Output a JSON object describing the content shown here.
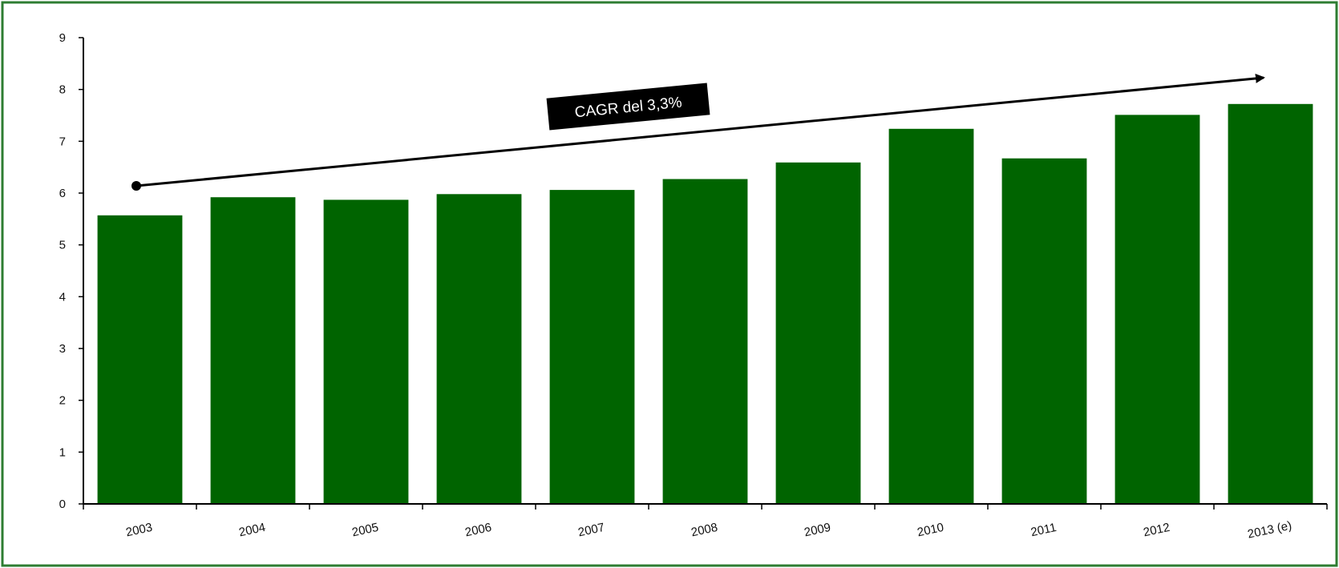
{
  "chart_data": {
    "type": "bar",
    "categories": [
      "2003",
      "2004",
      "2005",
      "2006",
      "2007",
      "2008",
      "2009",
      "2010",
      "2011",
      "2012",
      "2013 (e)"
    ],
    "values": [
      5.57,
      5.92,
      5.87,
      5.98,
      6.06,
      6.27,
      6.59,
      7.24,
      6.67,
      7.51,
      7.72
    ],
    "ylim": [
      0,
      9
    ],
    "yticks": [
      0,
      1,
      2,
      3,
      4,
      5,
      6,
      7,
      8,
      9
    ],
    "grid": false,
    "annotation": {
      "text": "CAGR del 3,3%",
      "shape": "trend-arrow"
    },
    "colors": {
      "bar": "#006400",
      "frame": "#2e7d32",
      "arrow": "#000000",
      "annotation_box": "#000000",
      "annotation_text": "#ffffff"
    }
  }
}
